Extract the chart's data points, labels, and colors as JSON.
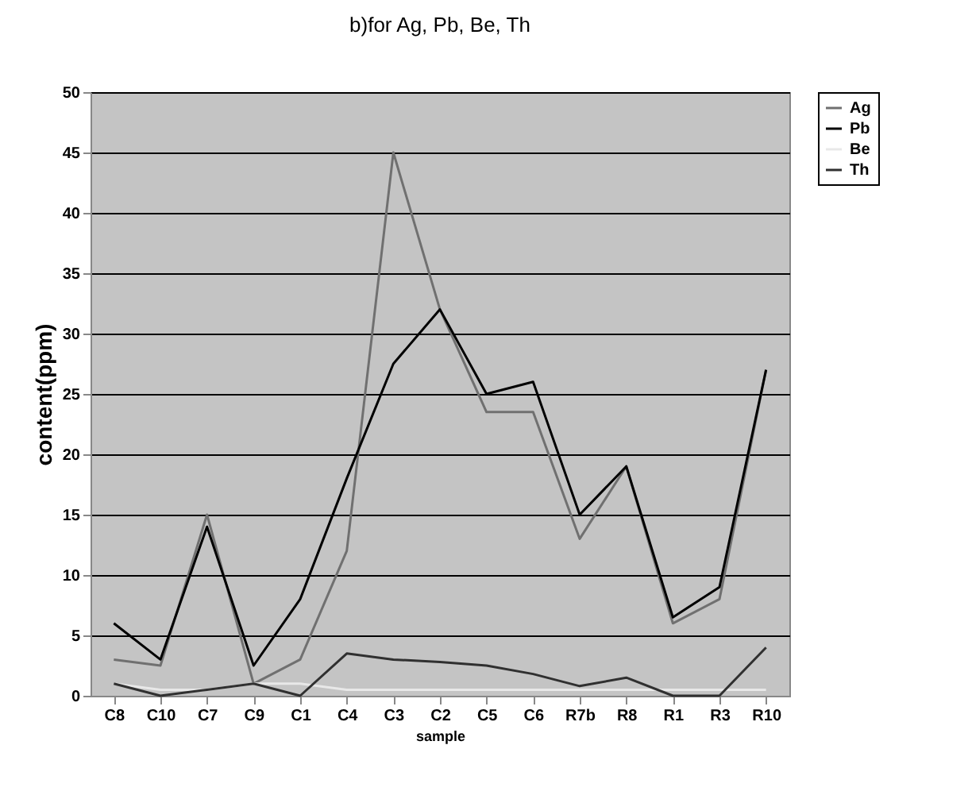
{
  "chart_data": {
    "type": "line",
    "title": "b)for Ag, Pb, Be, Th",
    "xlabel": "sample",
    "ylabel": "content(ppm)",
    "categories": [
      "C8",
      "C10",
      "C7",
      "C9",
      "C1",
      "C4",
      "C3",
      "C2",
      "C5",
      "C6",
      "R7b",
      "R8",
      "R1",
      "R3",
      "R10"
    ],
    "series": [
      {
        "name": "Ag",
        "color": "#707070",
        "values": [
          3,
          2.5,
          15,
          1,
          3,
          12,
          45,
          32,
          23.5,
          23.5,
          13,
          19,
          6,
          8,
          27
        ]
      },
      {
        "name": "Pb",
        "color": "#000000",
        "values": [
          6,
          3,
          14,
          2.5,
          8,
          18,
          27.5,
          32,
          25,
          26,
          15,
          19,
          6.5,
          9,
          27
        ]
      },
      {
        "name": "Be",
        "color": "#e8e8e8",
        "values": [
          1,
          0.5,
          0.5,
          1,
          1,
          0.5,
          0.5,
          0.5,
          0.5,
          0.5,
          0.5,
          0.5,
          0.5,
          0.5,
          0.5
        ]
      },
      {
        "name": "Th",
        "color": "#303030",
        "values": [
          1,
          0,
          0.5,
          1,
          0,
          3.5,
          3,
          2.8,
          2.5,
          1.8,
          0.8,
          1.5,
          0,
          0,
          4
        ]
      }
    ],
    "ylim": [
      0,
      50
    ],
    "yticks": [
      0,
      5,
      10,
      15,
      20,
      25,
      30,
      35,
      40,
      45,
      50
    ],
    "grid": "y",
    "legend": "right"
  }
}
